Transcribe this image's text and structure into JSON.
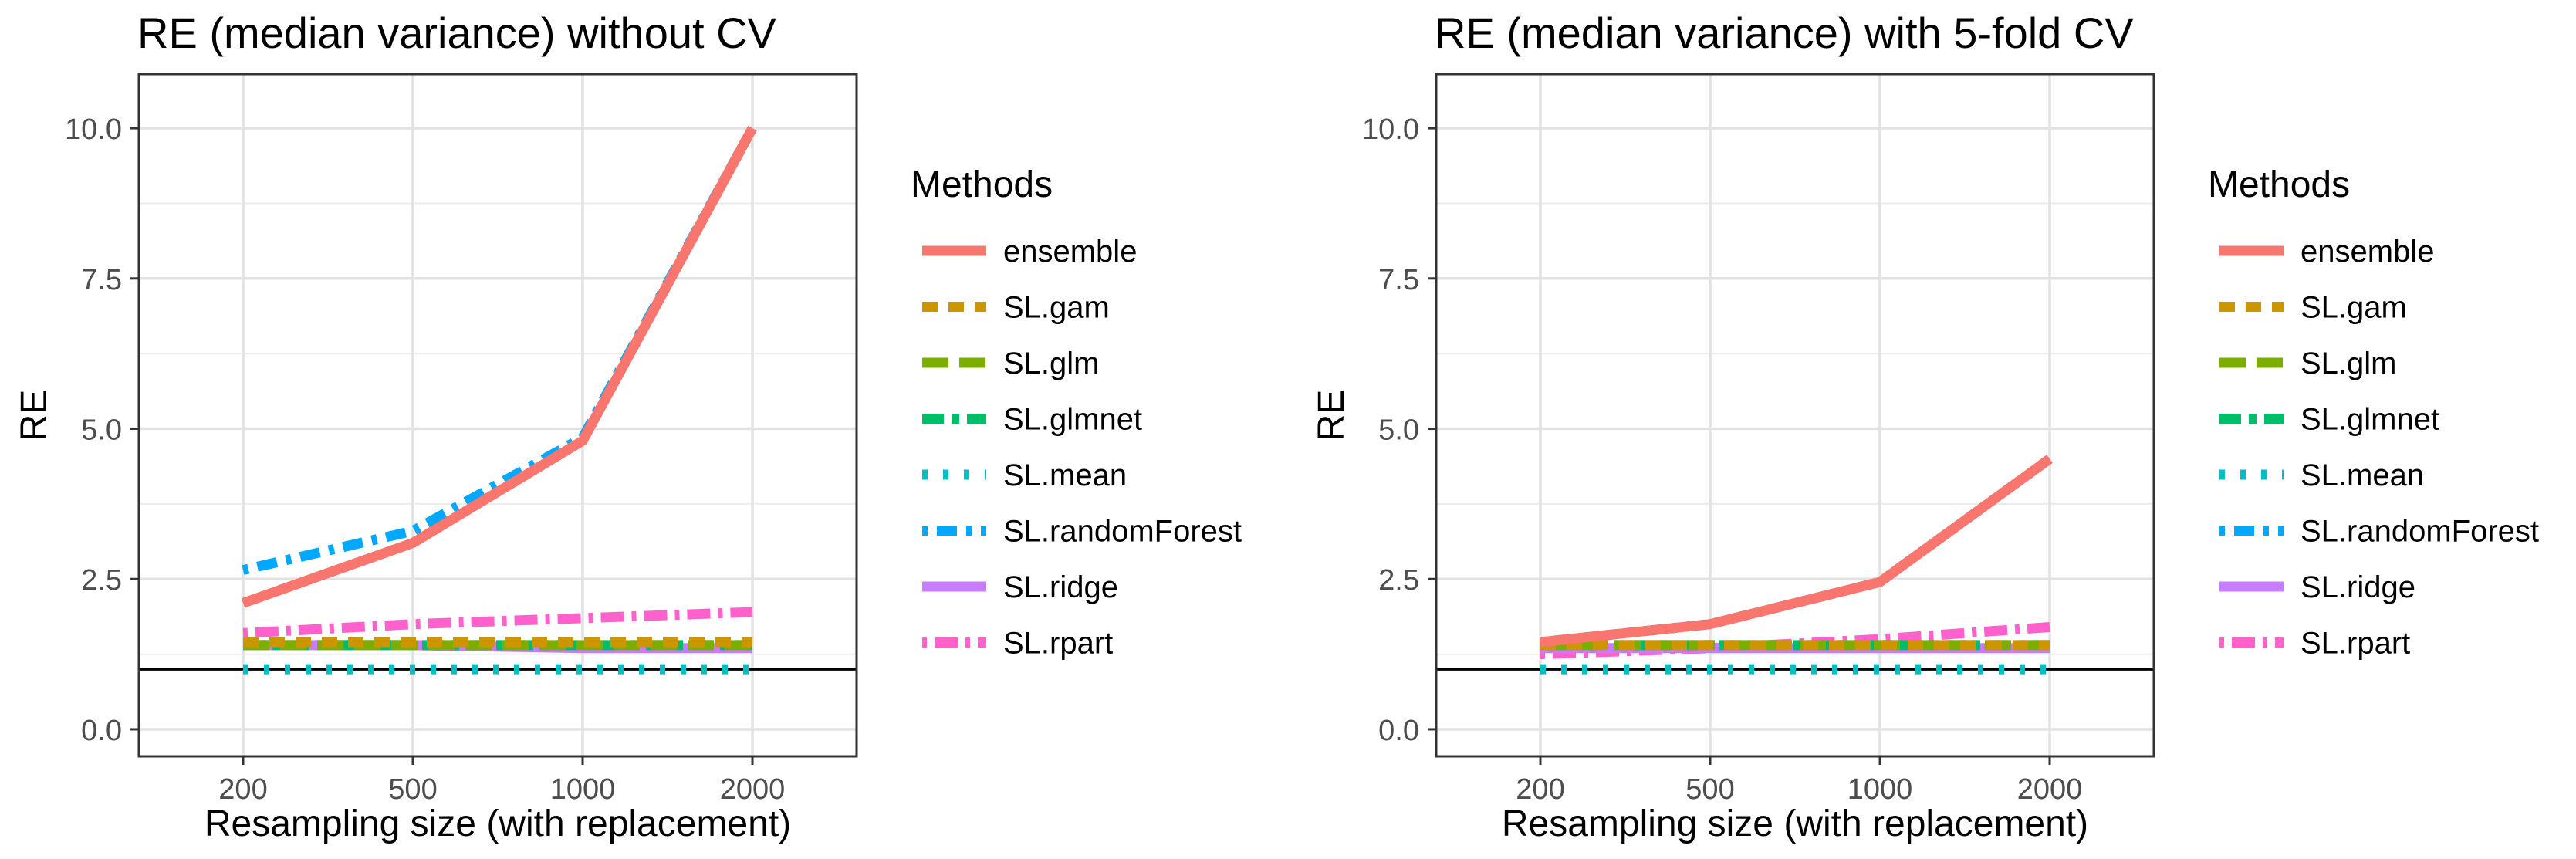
{
  "legend_title": "Methods",
  "methods": [
    {
      "name": "ensemble",
      "color": "#F8766D",
      "dash": "solid"
    },
    {
      "name": "SL.gam",
      "color": "#CD9600",
      "dash": "dashed"
    },
    {
      "name": "SL.glm",
      "color": "#7CAE00",
      "dash": "longdash"
    },
    {
      "name": "SL.glmnet",
      "color": "#00BE67",
      "dash": "twodash"
    },
    {
      "name": "SL.mean",
      "color": "#00BFC4",
      "dash": "dotted"
    },
    {
      "name": "SL.randomForest",
      "color": "#00A9FF",
      "dash": "dotdash"
    },
    {
      "name": "SL.ridge",
      "color": "#C77CFF",
      "dash": "solid"
    },
    {
      "name": "SL.rpart",
      "color": "#FF61CC",
      "dash": "dotdash-long"
    }
  ],
  "chart_data": [
    {
      "type": "line",
      "title": "RE (median variance) without CV",
      "xlabel": "Resampling size (with replacement)",
      "ylabel": "RE",
      "categories": [
        "200",
        "500",
        "1000",
        "2000"
      ],
      "ylim": [
        -0.45,
        10.9
      ],
      "yticks": [
        "0.0",
        "2.5",
        "5.0",
        "7.5",
        "10.0"
      ],
      "reference_line": 1.0,
      "grid": true,
      "legend_position": "right",
      "series": [
        {
          "name": "ensemble",
          "values": [
            2.1,
            3.1,
            4.8,
            10.0
          ]
        },
        {
          "name": "SL.gam",
          "values": [
            1.45,
            1.45,
            1.45,
            1.45
          ]
        },
        {
          "name": "SL.glm",
          "values": [
            1.4,
            1.4,
            1.4,
            1.4
          ]
        },
        {
          "name": "SL.glmnet",
          "values": [
            1.4,
            1.4,
            1.4,
            1.4
          ]
        },
        {
          "name": "SL.mean",
          "values": [
            1.0,
            1.0,
            1.0,
            1.0
          ]
        },
        {
          "name": "SL.randomForest",
          "values": [
            2.65,
            3.3,
            4.85,
            10.0
          ]
        },
        {
          "name": "SL.ridge",
          "values": [
            1.4,
            1.4,
            1.35,
            1.35
          ]
        },
        {
          "name": "SL.rpart",
          "values": [
            1.6,
            1.75,
            1.85,
            1.95
          ]
        }
      ]
    },
    {
      "type": "line",
      "title": "RE (median variance) with 5-fold CV",
      "xlabel": "Resampling size (with replacement)",
      "ylabel": "RE",
      "categories": [
        "200",
        "500",
        "1000",
        "2000"
      ],
      "ylim": [
        -0.45,
        10.9
      ],
      "yticks": [
        "0.0",
        "2.5",
        "5.0",
        "7.5",
        "10.0"
      ],
      "reference_line": 1.0,
      "grid": true,
      "legend_position": "right",
      "series": [
        {
          "name": "ensemble",
          "values": [
            1.45,
            1.75,
            2.45,
            4.5
          ]
        },
        {
          "name": "SL.gam",
          "values": [
            1.4,
            1.4,
            1.4,
            1.4
          ]
        },
        {
          "name": "SL.glm",
          "values": [
            1.4,
            1.4,
            1.4,
            1.4
          ]
        },
        {
          "name": "SL.glmnet",
          "values": [
            1.4,
            1.4,
            1.4,
            1.4
          ]
        },
        {
          "name": "SL.mean",
          "values": [
            1.0,
            1.0,
            1.0,
            1.0
          ]
        },
        {
          "name": "SL.randomForest",
          "values": [
            1.45,
            1.75,
            2.45,
            4.5
          ]
        },
        {
          "name": "SL.ridge",
          "values": [
            1.35,
            1.35,
            1.35,
            1.35
          ]
        },
        {
          "name": "SL.rpart",
          "values": [
            1.25,
            1.35,
            1.5,
            1.7
          ]
        }
      ]
    }
  ]
}
